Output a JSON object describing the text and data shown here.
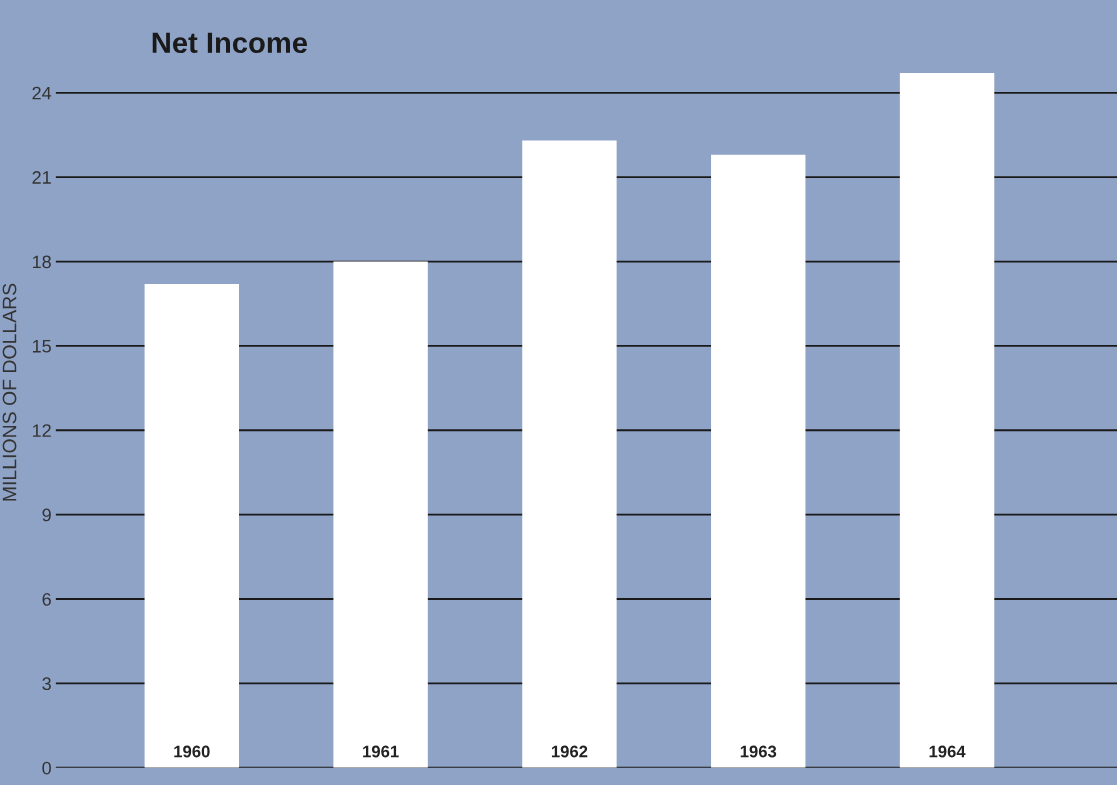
{
  "chart_data": {
    "type": "bar",
    "title": "Net Income",
    "ylabel": "MILLIONS OF DOLLARS",
    "categories": [
      "1960",
      "1961",
      "1962",
      "1963",
      "1964"
    ],
    "values": [
      17.2,
      18.0,
      22.3,
      21.8,
      24.7
    ],
    "color": "#ffffff",
    "ylim": [
      0,
      27.3
    ],
    "yticks": [
      0,
      3,
      6,
      9,
      12,
      15,
      18,
      21,
      24
    ],
    "grid": "y"
  }
}
